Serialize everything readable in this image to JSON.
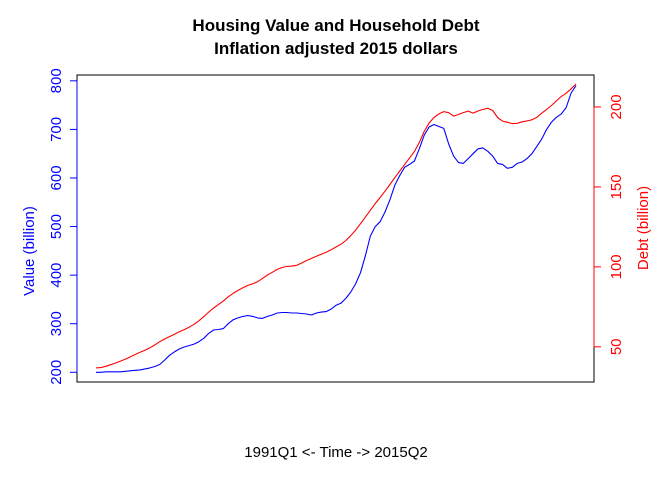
{
  "chart_data": {
    "type": "line",
    "title": "Housing Value and Household Debt",
    "subtitle": "Inflation adjusted 2015 dollars",
    "xlabel": "1991Q1 <- Time -> 2015Q2",
    "x_start": "1991Q1",
    "x_end": "2015Q2",
    "grid": false,
    "y_left": {
      "label": "Value (billion)",
      "color": "#0000ff",
      "ticks": [
        200,
        300,
        400,
        500,
        600,
        700,
        800
      ],
      "ylim": [
        180,
        812
      ]
    },
    "y_right": {
      "label": "Debt (billion)",
      "color": "#ff0000",
      "ticks": [
        50,
        100,
        150,
        200
      ],
      "ylim": [
        28,
        220
      ]
    },
    "series": [
      {
        "name": "Value (billion)",
        "axis": "left",
        "color": "#0000ff",
        "values": [
          200,
          200,
          201,
          201,
          201,
          201,
          202,
          203,
          204,
          205,
          207,
          209,
          212,
          216,
          225,
          235,
          242,
          248,
          252,
          255,
          258,
          263,
          270,
          280,
          287,
          288,
          290,
          300,
          308,
          312,
          315,
          317,
          315,
          312,
          311,
          315,
          318,
          322,
          323,
          323,
          322,
          322,
          321,
          320,
          318,
          322,
          324,
          325,
          330,
          338,
          342,
          352,
          365,
          382,
          405,
          440,
          480,
          500,
          510,
          530,
          555,
          585,
          605,
          622,
          628,
          635,
          660,
          688,
          705,
          710,
          706,
          702,
          670,
          645,
          632,
          630,
          640,
          650,
          660,
          662,
          655,
          645,
          630,
          628,
          620,
          622,
          630,
          633,
          640,
          650,
          665,
          680,
          700,
          715,
          725,
          732,
          745,
          775,
          790
        ]
      },
      {
        "name": "Debt (billion)",
        "axis": "right",
        "color": "#ff0000",
        "values": [
          36.8,
          37.0,
          37.8,
          38.8,
          39.9,
          41.1,
          42.3,
          43.7,
          45.2,
          46.6,
          47.8,
          49.4,
          51.2,
          53.2,
          54.9,
          56.4,
          57.9,
          59.4,
          60.8,
          62.3,
          64.1,
          66.3,
          68.9,
          71.7,
          74.3,
          76.4,
          78.6,
          81.3,
          83.4,
          85.3,
          87.0,
          88.4,
          89.4,
          90.7,
          92.8,
          94.9,
          96.6,
          98.4,
          99.6,
          100.3,
          100.5,
          101.0,
          102.4,
          104.0,
          105.3,
          106.7,
          107.9,
          109.2,
          110.7,
          112.4,
          114.1,
          116.5,
          119.5,
          123.0,
          127.0,
          131.1,
          135.4,
          139.6,
          143.4,
          147.3,
          151.5,
          155.8,
          159.9,
          163.9,
          168.0,
          172.1,
          177.8,
          184.7,
          190.0,
          193.4,
          195.7,
          197.1,
          196.4,
          194.3,
          195.3,
          196.5,
          197.4,
          196.2,
          197.5,
          198.5,
          199.2,
          197.8,
          193.4,
          191.2,
          190.4,
          189.6,
          189.8,
          190.7,
          191.3,
          192.0,
          193.5,
          196.1,
          198.5,
          200.9,
          203.8,
          206.6,
          208.6,
          211.4,
          214.4
        ]
      }
    ]
  }
}
